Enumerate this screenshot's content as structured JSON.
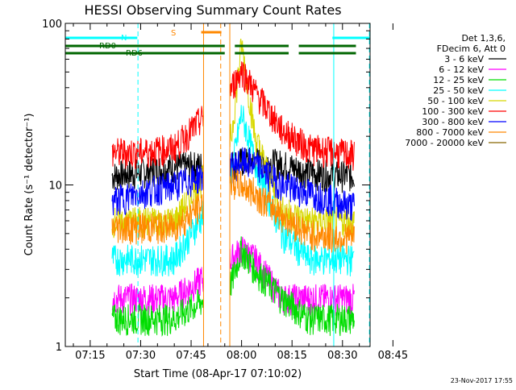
{
  "chart_data": {
    "type": "line",
    "title": "HESSI Observing Summary Count Rates",
    "xlabel": "Start Time (08-Apr-17 07:10:02)",
    "ylabel": "Count Rate (s⁻¹ detector⁻¹)",
    "y_scale": "log",
    "ylim": [
      1,
      100
    ],
    "xlim_minutes": [
      7.6,
      98.2
    ],
    "x_tick_labels": [
      "07:15",
      "07:30",
      "07:45",
      "08:00",
      "08:15",
      "08:30",
      "08:45"
    ],
    "x_tick_minutes": [
      15,
      30,
      45,
      60,
      75,
      90,
      105
    ],
    "y_tick_labels": [
      "1",
      "10",
      "100"
    ],
    "y_tick_values": [
      1,
      10,
      100
    ],
    "footer_date": "23-Nov-2017 17:55",
    "legend_header": [
      "Det 1,3,6,",
      "FDecim 6, Att 0"
    ],
    "series": [
      {
        "name": "3 - 6 keV",
        "color": "#000000",
        "values": [
          11.5,
          12.0,
          13.0,
          13.5,
          14.0,
          14.2,
          13.5,
          12.0,
          11.5,
          11.5
        ]
      },
      {
        "name": "6 - 12 keV",
        "color": "#ff00ff",
        "values": [
          2.0,
          2.0,
          2.0,
          3.5,
          4.0,
          3.5,
          2.0,
          2.0,
          2.0,
          2.0
        ]
      },
      {
        "name": "12 - 25 keV",
        "color": "#00dd00",
        "values": [
          1.5,
          1.5,
          1.5,
          2.5,
          4.0,
          3.0,
          2.0,
          1.5,
          1.5,
          1.5
        ]
      },
      {
        "name": "25 - 50 keV",
        "color": "#00ffff",
        "values": [
          3.5,
          3.5,
          3.5,
          12.0,
          28.0,
          14.0,
          5.0,
          3.5,
          3.5,
          3.5
        ]
      },
      {
        "name": "50 - 100 keV",
        "color": "#d8d800",
        "values": [
          6.0,
          6.0,
          6.0,
          20.0,
          75.0,
          20.0,
          7.0,
          6.0,
          6.0,
          6.0
        ]
      },
      {
        "name": "100 - 300 keV",
        "color": "#ff0000",
        "values": [
          16.0,
          16.0,
          17.0,
          40.0,
          52.0,
          38.0,
          22.0,
          17.0,
          16.0,
          15.5
        ]
      },
      {
        "name": "300 - 800 keV",
        "color": "#0000ff",
        "values": [
          8.0,
          9.0,
          10.0,
          13.0,
          14.0,
          13.5,
          10.0,
          9.0,
          8.0,
          7.5
        ]
      },
      {
        "name": "800 - 7000 keV",
        "color": "#ff8800",
        "values": [
          5.5,
          5.5,
          5.5,
          10.5,
          10.0,
          9.0,
          6.5,
          5.0,
          4.8,
          4.8
        ]
      },
      {
        "name": "7000 - 20000 keV",
        "color": "#886600",
        "values": []
      }
    ],
    "sample_minutes": [
      22,
      30,
      40,
      57,
      60,
      64,
      72,
      80,
      88,
      92
    ],
    "flags": [
      {
        "label": "N",
        "color": "#00ffff",
        "row": 0,
        "spans": [
          [
            7.6,
            29
          ],
          [
            87,
            98.2
          ]
        ]
      },
      {
        "label": "RD0",
        "color": "#006600",
        "row": 1,
        "spans": [
          [
            7.6,
            55
          ],
          [
            58,
            74
          ],
          [
            77,
            94
          ]
        ]
      },
      {
        "label": "RD6",
        "color": "#006600",
        "row": 2,
        "spans": [
          [
            7.6,
            55
          ],
          [
            58,
            74
          ],
          [
            77,
            94
          ]
        ]
      },
      {
        "label": "S",
        "color": "#ff8800",
        "row": 3,
        "spans": [
          [
            48,
            54
          ]
        ]
      }
    ],
    "vlines": [
      {
        "color": "#00ffff",
        "style": "dashed",
        "minute": 29.2
      },
      {
        "color": "#ff8800",
        "style": "solid",
        "minute": 48.7
      },
      {
        "color": "#ff8800",
        "style": "dashed",
        "minute": 53.8
      },
      {
        "color": "#ff8800",
        "style": "solid",
        "minute": 56.5
      },
      {
        "color": "#00ffff",
        "style": "solid",
        "minute": 87.4
      },
      {
        "color": "#00ffff",
        "style": "dashed",
        "minute": 98.0
      }
    ]
  }
}
